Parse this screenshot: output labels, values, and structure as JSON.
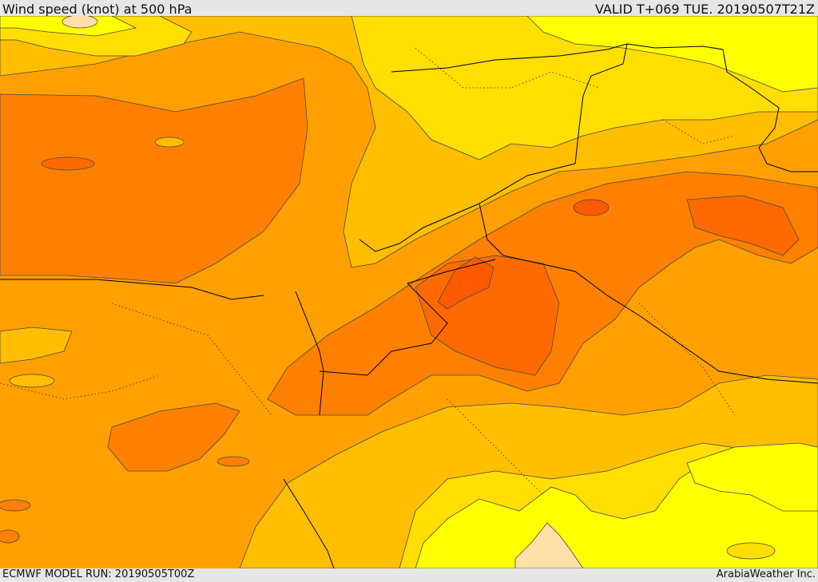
{
  "header": {
    "title": "Wind speed (knot) at 500 hPa",
    "valid_time": "VALID T+069 TUE. 20190507T21Z"
  },
  "footer": {
    "model_run": "ECMWF MODEL RUN: 20190505T00Z",
    "credit": "ArabiaWeather Inc."
  },
  "map_colors": {
    "band_lowest": "#ffdfa8",
    "band_1": "#ffff00",
    "band_2": "#ffde00",
    "band_3": "#ffbe00",
    "band_4": "#ffa000",
    "band_5": "#ff8000",
    "band_6": "#ff6a00",
    "band_7": "#ff5a00",
    "borders": "#000000",
    "contours": "#4a4a4a"
  }
}
